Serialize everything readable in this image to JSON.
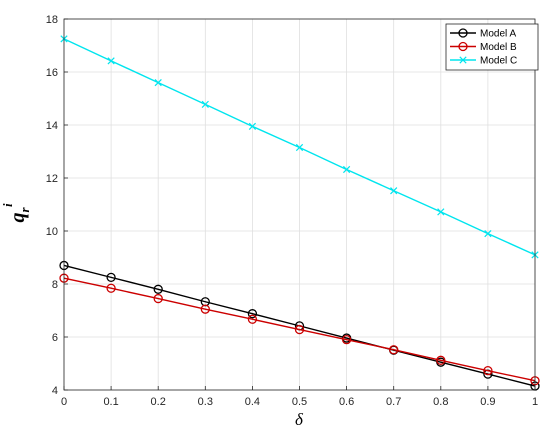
{
  "chart_data": {
    "type": "line",
    "title": "",
    "xlabel": "δ",
    "ylabel": {
      "base": "q",
      "sub": "r",
      "sup": "i"
    },
    "xlim": [
      0,
      1
    ],
    "ylim": [
      4,
      18
    ],
    "xticks": [
      0,
      0.1,
      0.2,
      0.3,
      0.4,
      0.5,
      0.6,
      0.7,
      0.8,
      0.9,
      1
    ],
    "xtick_labels": [
      "0",
      "0.1",
      "0.2",
      "0.3",
      "0.4",
      "0.5",
      "0.6",
      "0.7",
      "0.8",
      "0.9",
      "1"
    ],
    "yticks": [
      4,
      6,
      8,
      10,
      12,
      14,
      16,
      18
    ],
    "ytick_labels": [
      "4",
      "6",
      "8",
      "10",
      "12",
      "14",
      "16",
      "18"
    ],
    "grid": true,
    "legend_position": "top-right",
    "x": [
      0,
      0.1,
      0.2,
      0.3,
      0.4,
      0.5,
      0.6,
      0.7,
      0.8,
      0.9,
      1
    ],
    "series": [
      {
        "name": "Model A",
        "marker": "circle",
        "color": "#000000",
        "values": [
          8.7,
          8.25,
          7.8,
          7.33,
          6.88,
          6.42,
          5.96,
          5.5,
          5.05,
          4.6,
          4.15
        ]
      },
      {
        "name": "Model B",
        "marker": "circle",
        "color": "#cc0000",
        "values": [
          8.22,
          7.84,
          7.45,
          7.05,
          6.67,
          6.28,
          5.9,
          5.52,
          5.12,
          4.73,
          4.35
        ]
      },
      {
        "name": "Model C",
        "marker": "x",
        "color": "#00e5ee",
        "values": [
          17.25,
          16.42,
          15.6,
          14.78,
          13.95,
          13.15,
          12.32,
          11.52,
          10.72,
          9.9,
          9.1
        ]
      }
    ]
  }
}
